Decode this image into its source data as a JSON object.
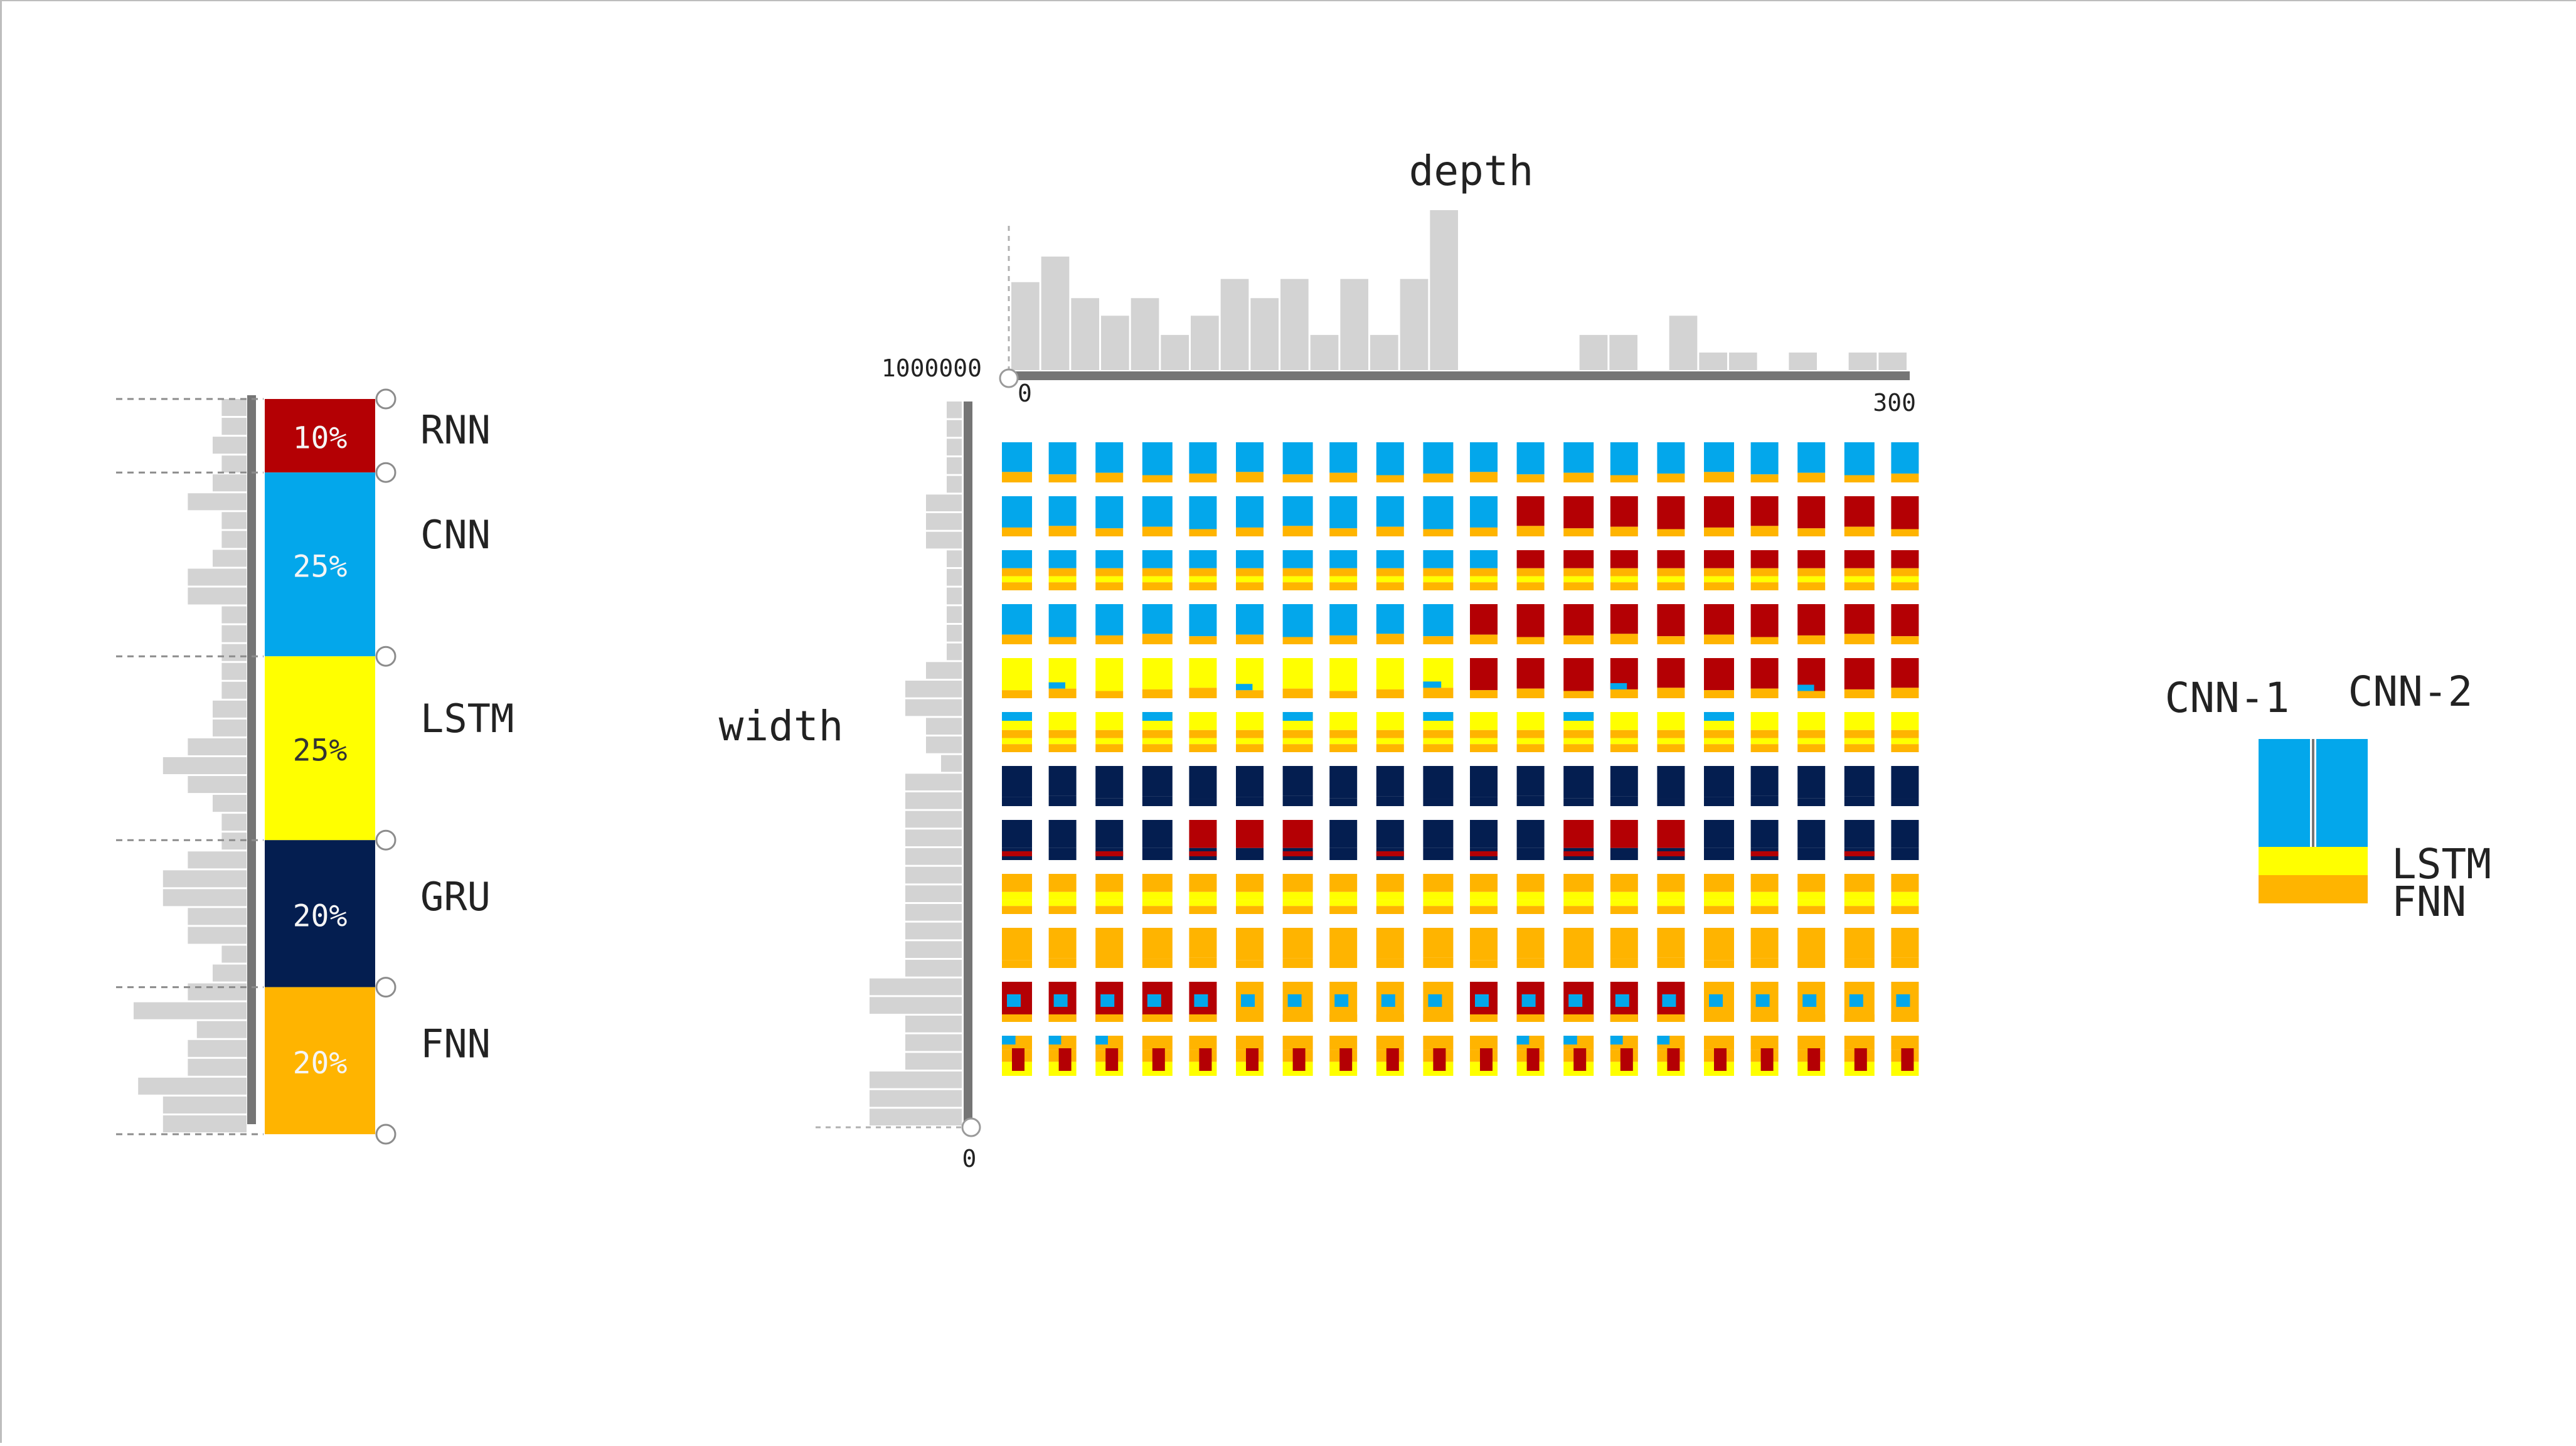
{
  "colors": {
    "RNN": "#b40004",
    "CNN": "#03a7eb",
    "LSTM": "#ffff00",
    "GRU": "#041e50",
    "FNN": "#ffb400",
    "hist": "#d3d3d3",
    "axis": "#757575",
    "background": "#ffffff",
    "label": "#222222"
  },
  "composition_slider": {
    "segments": [
      {
        "type": "RNN",
        "label": "RNN",
        "percent_text": "10%",
        "share": 0.1
      },
      {
        "type": "CNN",
        "label": "CNN",
        "percent_text": "25%",
        "share": 0.25
      },
      {
        "type": "LSTM",
        "label": "LSTM",
        "percent_text": "25%",
        "share": 0.25
      },
      {
        "type": "GRU",
        "label": "GRU",
        "percent_text": "20%",
        "share": 0.2
      },
      {
        "type": "FNN",
        "label": "FNN",
        "percent_text": "20%",
        "share": 0.2
      }
    ],
    "histogram": [
      0.22,
      0.22,
      0.3,
      0.22,
      0.3,
      0.52,
      0.22,
      0.22,
      0.3,
      0.52,
      0.52,
      0.22,
      0.22,
      0.22,
      0.22,
      0.22,
      0.3,
      0.3,
      0.52,
      0.74,
      0.52,
      0.3,
      0.22,
      0.22,
      0.52,
      0.74,
      0.74,
      0.52,
      0.52,
      0.22,
      0.3,
      0.52,
      1.0,
      0.44,
      0.52,
      0.52,
      0.96,
      0.74,
      0.74
    ]
  },
  "depth_histogram": {
    "title": "depth",
    "range_min": "0",
    "range_max": "300",
    "bars": [
      0.55,
      0.71,
      0.45,
      0.34,
      0.45,
      0.22,
      0.34,
      0.57,
      0.45,
      0.57,
      0.22,
      0.57,
      0.22,
      0.57,
      1.0,
      0,
      0,
      0,
      0,
      0.22,
      0.22,
      0,
      0.34,
      0.11,
      0.11,
      0,
      0.11,
      0,
      0.11,
      0.11
    ]
  },
  "width_histogram": {
    "title": "width",
    "range_min": "0",
    "range_max": "1000000",
    "bars": [
      0.08,
      0.08,
      0.08,
      0.08,
      0.08,
      0.19,
      0.19,
      0.19,
      0.08,
      0.08,
      0.08,
      0.08,
      0.08,
      0.08,
      0.19,
      0.3,
      0.3,
      0.19,
      0.19,
      0.11,
      0.3,
      0.3,
      0.3,
      0.3,
      0.3,
      0.3,
      0.3,
      0.3,
      0.3,
      0.3,
      0.3,
      0.49,
      0.49,
      0.3,
      0.3,
      0.3,
      0.49,
      0.49,
      0.49
    ]
  },
  "grid": {
    "columns": 20,
    "rows": [
      {
        "top": "CNN",
        "bottom": "FNN",
        "shape": "tall"
      },
      {
        "top": "CNN",
        "bottom": "FNN",
        "shape": "tall",
        "switch_col": 11,
        "switch_top": "RNN"
      },
      {
        "top": "CNN",
        "bottom": "FNN",
        "shape": "stack",
        "switch_col": 11,
        "switch_top": "RNN"
      },
      {
        "top": "CNN",
        "bottom": "FNN",
        "shape": "tall",
        "switch_col": 10,
        "switch_top": "RNN"
      },
      {
        "top": "LSTM",
        "bottom": "FNN",
        "shape": "tall",
        "switch_col": 10,
        "switch_top": "RNN",
        "accent": "CNN"
      },
      {
        "top": "LSTM",
        "bottom": "FNN",
        "shape": "stack",
        "accent": "CNN"
      },
      {
        "top": "GRU",
        "bottom": "GRU",
        "shape": "tall"
      },
      {
        "top": "GRU",
        "bottom": "RNN",
        "shape": "mixed"
      },
      {
        "top": "FNN",
        "bottom": "LSTM",
        "shape": "stack"
      },
      {
        "top": "FNN",
        "bottom": "FNN",
        "shape": "tall"
      },
      {
        "top": "RNN",
        "bottom": "FNN",
        "shape": "dot",
        "accent": "CNN"
      },
      {
        "top": "FNN",
        "bottom": "LSTM",
        "shape": "pillar",
        "accent": "RNN"
      }
    ]
  },
  "legend": {
    "label_left": "CNN-1",
    "label_right": "CNN-2",
    "label_lstm": "LSTM",
    "label_fnn": "FNN"
  }
}
